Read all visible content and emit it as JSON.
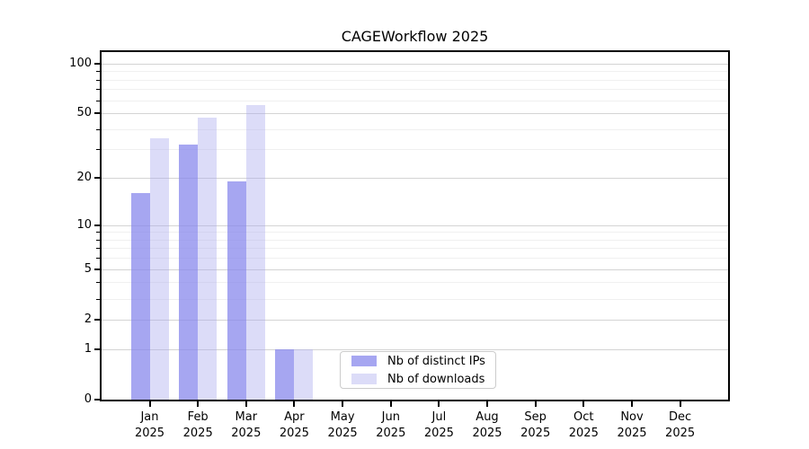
{
  "chart_data": {
    "type": "bar",
    "title": "CAGEWorkflow 2025",
    "categories": [
      "Jan",
      "Feb",
      "Mar",
      "Apr",
      "May",
      "Jun",
      "Jul",
      "Aug",
      "Sep",
      "Oct",
      "Nov",
      "Dec"
    ],
    "x_year_line": "2025",
    "series": [
      {
        "name": "Nb of distinct IPs",
        "color": "#8888ec",
        "alpha": 0.75,
        "values": [
          16,
          32,
          19,
          1,
          0,
          0,
          0,
          0,
          0,
          0,
          0,
          0
        ]
      },
      {
        "name": "Nb of downloads",
        "color": "#a8a8ee",
        "alpha": 0.4,
        "values": [
          35,
          47,
          56,
          1,
          0,
          0,
          0,
          0,
          0,
          0,
          0,
          0
        ]
      }
    ],
    "y_scale": "log1p",
    "ylim": [
      0,
      117
    ],
    "y_ticks": [
      0,
      1,
      2,
      5,
      10,
      20,
      50,
      100
    ],
    "y_minor_ticks": [
      3,
      4,
      6,
      7,
      8,
      9,
      30,
      40,
      60,
      70,
      80,
      90
    ],
    "grid": true,
    "legend_position": "lower center"
  }
}
